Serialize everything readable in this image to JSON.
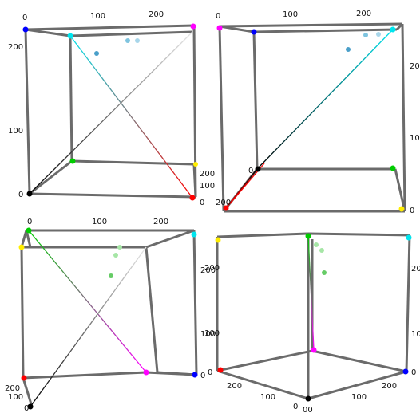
{
  "colors": {
    "edge": "#6b6b6b",
    "black": "#000000",
    "red": "#ff0000",
    "green": "#00cc00",
    "blue": "#0000ff",
    "yellow": "#ffee00",
    "magenta": "#ff00ff",
    "cyan": "#00e5ee",
    "white": "#ffffff",
    "point1": "#4a9fc9",
    "point2": "#7fc4df",
    "point3": "#a8d6ea",
    "point4": "#66cc66",
    "point5": "#a6e6a6"
  },
  "panels": [
    {
      "name": "top-left",
      "ticks": [
        "0",
        "100",
        "200",
        "200",
        "100",
        "0",
        "0",
        "100",
        "200"
      ],
      "diagonals": [
        "cyan-red",
        "black-white"
      ]
    },
    {
      "name": "top-right",
      "ticks": [
        "0",
        "100",
        "200",
        "20",
        "10",
        "0",
        "0",
        "200"
      ],
      "diagonals": [
        "black-cyan",
        "black-red"
      ]
    },
    {
      "name": "bottom-left",
      "ticks": [
        "0",
        "100",
        "200",
        "200",
        "100",
        "0",
        "200",
        "100",
        "0"
      ],
      "diagonals": [
        "green-magenta",
        "black-white"
      ]
    },
    {
      "name": "bottom-right",
      "ticks": [
        "200",
        "100",
        "0",
        "200",
        "100",
        "0",
        "00",
        "100",
        "200",
        "20",
        "10",
        "0"
      ],
      "diagonals": [
        "green-magenta"
      ]
    }
  ]
}
